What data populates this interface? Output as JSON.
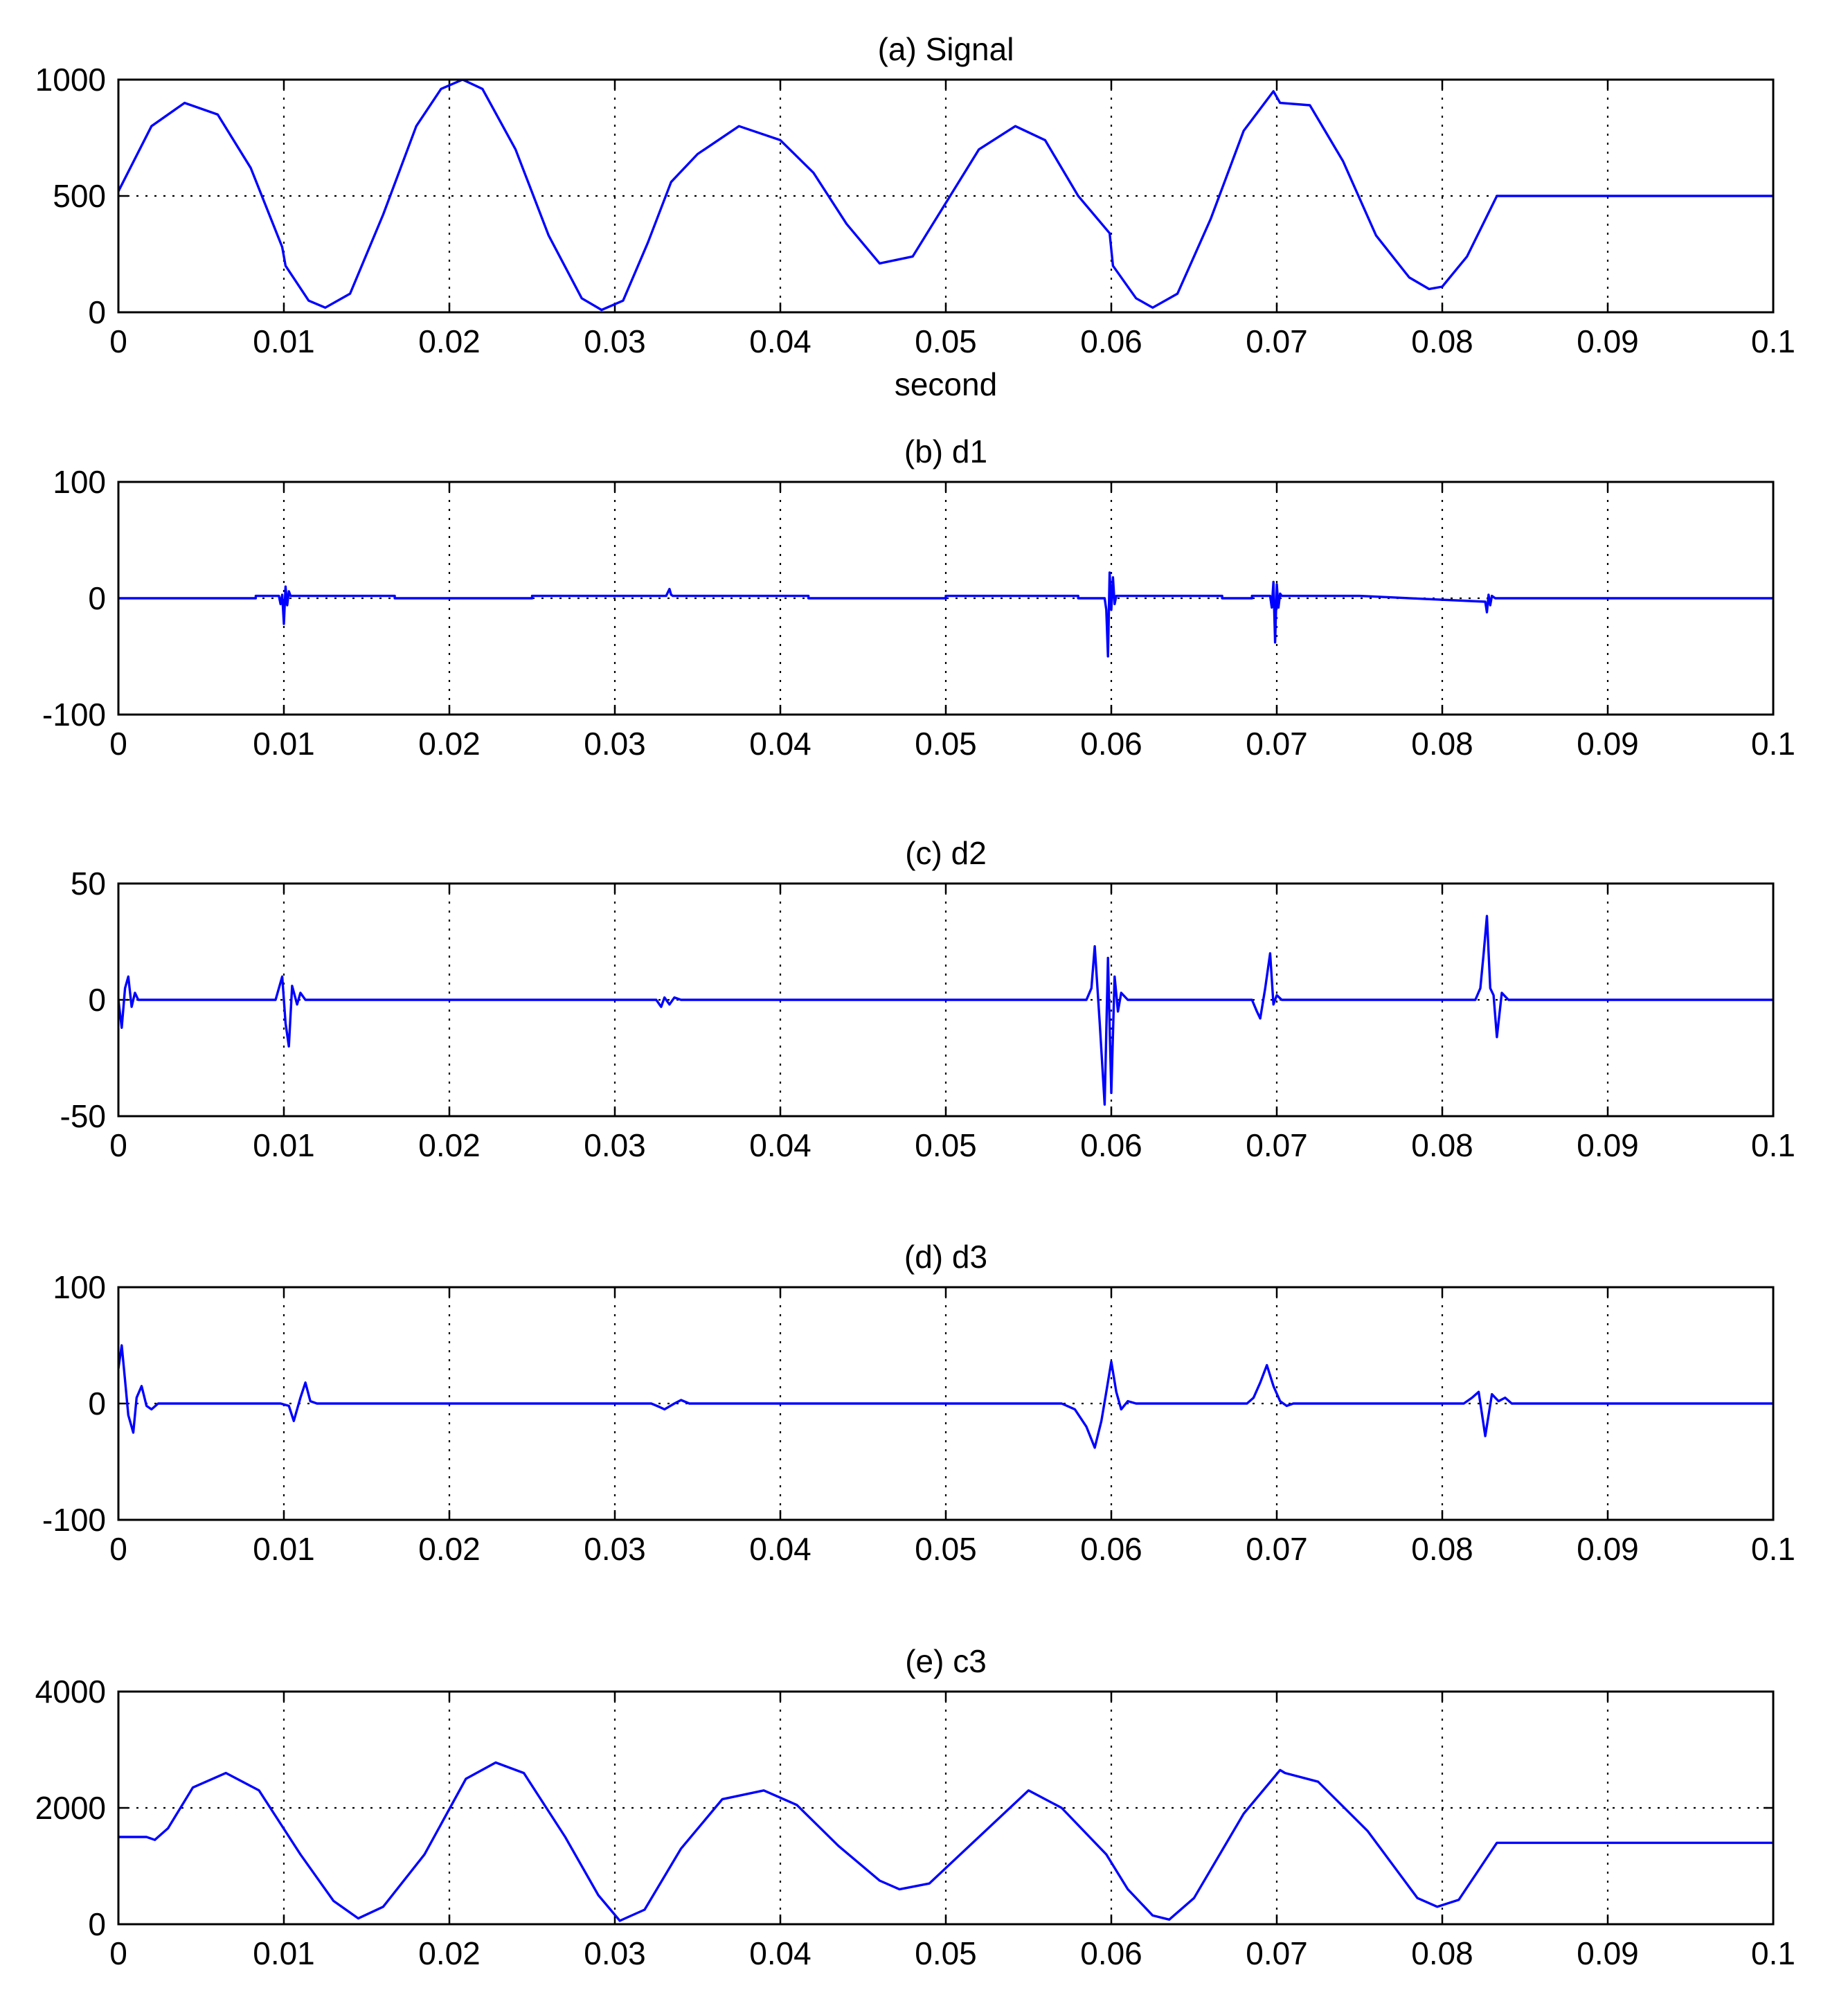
{
  "figure": {
    "colors": {
      "series": "#0000ff",
      "axes": "#000000",
      "background": "#ffffff"
    }
  },
  "chart_data": [
    {
      "type": "line",
      "title": "(a) Signal",
      "xlabel": "second",
      "ylabel": "",
      "xlim": [
        0,
        0.1
      ],
      "ylim": [
        0,
        1000
      ],
      "xticks": [
        0,
        0.01,
        0.02,
        0.03,
        0.04,
        0.05,
        0.06,
        0.07,
        0.08,
        0.09,
        0.1
      ],
      "xtick_labels": [
        "0",
        "0.01",
        "0.02",
        "0.03",
        "0.04",
        "0.05",
        "0.06",
        "0.07",
        "0.08",
        "0.09",
        "0.1"
      ],
      "yticks": [
        0,
        500,
        1000
      ],
      "ytick_labels": [
        "0",
        "500",
        "1000"
      ],
      "grid": true,
      "series": [
        {
          "x": [
            0,
            0.002,
            0.004,
            0.006,
            0.008,
            0.0099,
            0.0101,
            0.0115,
            0.0125,
            0.014,
            0.016,
            0.018,
            0.0195,
            0.0208,
            0.022,
            0.024,
            0.026,
            0.028,
            0.0292,
            0.0305,
            0.032,
            0.0334,
            0.035,
            0.0375,
            0.04,
            0.042,
            0.044,
            0.046,
            0.048,
            0.05,
            0.052,
            0.0542,
            0.056,
            0.058,
            0.0599,
            0.0601,
            0.0615,
            0.0625,
            0.064,
            0.066,
            0.068,
            0.0698,
            0.0702,
            0.072,
            0.074,
            0.076,
            0.078,
            0.0792,
            0.08,
            0.0815,
            0.0833,
            0.0834,
            0.09,
            0.1
          ],
          "y": [
            520,
            800,
            900,
            850,
            620,
            280,
            200,
            50,
            20,
            80,
            420,
            800,
            960,
            1000,
            960,
            700,
            330,
            60,
            10,
            50,
            300,
            560,
            680,
            800,
            740,
            600,
            380,
            210,
            240,
            470,
            700,
            800,
            740,
            500,
            340,
            200,
            60,
            20,
            80,
            400,
            780,
            950,
            900,
            890,
            650,
            330,
            150,
            100,
            110,
            240,
            500,
            500,
            500,
            500
          ]
        }
      ]
    },
    {
      "type": "line",
      "title": "(b) d1",
      "xlabel": "",
      "ylabel": "",
      "xlim": [
        0,
        0.1
      ],
      "ylim": [
        -100,
        100
      ],
      "xticks": [
        0,
        0.01,
        0.02,
        0.03,
        0.04,
        0.05,
        0.06,
        0.07,
        0.08,
        0.09,
        0.1
      ],
      "xtick_labels": [
        "0",
        "0.01",
        "0.02",
        "0.03",
        "0.04",
        "0.05",
        "0.06",
        "0.07",
        "0.08",
        "0.09",
        "0.1"
      ],
      "yticks": [
        -100,
        0,
        100
      ],
      "ytick_labels": [
        "-100",
        "0",
        "100"
      ],
      "grid": true,
      "series": [
        {
          "x": [
            0,
            0.0083,
            0.0083,
            0.0097,
            0.0098,
            0.0099,
            0.01,
            0.0101,
            0.0102,
            0.0103,
            0.0104,
            0.0105,
            0.0167,
            0.0167,
            0.025,
            0.025,
            0.0331,
            0.0332,
            0.0333,
            0.0334,
            0.0335,
            0.0417,
            0.0417,
            0.05,
            0.05,
            0.058,
            0.058,
            0.0596,
            0.0597,
            0.0598,
            0.0599,
            0.06,
            0.0601,
            0.0602,
            0.0603,
            0.0604,
            0.0606,
            0.0667,
            0.0667,
            0.0685,
            0.0685,
            0.0696,
            0.0697,
            0.0698,
            0.0699,
            0.07,
            0.0701,
            0.0702,
            0.0703,
            0.0705,
            0.075,
            0.075,
            0.0826,
            0.0827,
            0.0828,
            0.0829,
            0.083,
            0.0832,
            0.1
          ],
          "y": [
            0,
            0,
            2,
            2,
            -5,
            3,
            -22,
            10,
            -6,
            6,
            2,
            2,
            2,
            0,
            0,
            2,
            2,
            5,
            8,
            3,
            2,
            2,
            0,
            0,
            2,
            2,
            0,
            0,
            -10,
            -50,
            22,
            -10,
            18,
            -5,
            2,
            2,
            2,
            2,
            0,
            0,
            2,
            2,
            -8,
            14,
            -38,
            12,
            -8,
            4,
            2,
            2,
            2,
            2,
            -3,
            -12,
            3,
            -6,
            2,
            0,
            0
          ]
        }
      ]
    },
    {
      "type": "line",
      "title": "(c) d2",
      "xlabel": "",
      "ylabel": "",
      "xlim": [
        0,
        0.1
      ],
      "ylim": [
        -50,
        50
      ],
      "xticks": [
        0,
        0.01,
        0.02,
        0.03,
        0.04,
        0.05,
        0.06,
        0.07,
        0.08,
        0.09,
        0.1
      ],
      "xtick_labels": [
        "0",
        "0.01",
        "0.02",
        "0.03",
        "0.04",
        "0.05",
        "0.06",
        "0.07",
        "0.08",
        "0.09",
        "0.1"
      ],
      "yticks": [
        -50,
        0,
        50
      ],
      "ytick_labels": [
        "-50",
        "0",
        "50"
      ],
      "grid": true,
      "series": [
        {
          "x": [
            0,
            0.0002,
            0.0004,
            0.0006,
            0.0008,
            0.001,
            0.0012,
            0.0015,
            0.0095,
            0.0097,
            0.0099,
            0.0101,
            0.0103,
            0.0105,
            0.0108,
            0.011,
            0.0113,
            0.0325,
            0.0328,
            0.033,
            0.0333,
            0.0336,
            0.034,
            0.0585,
            0.0588,
            0.059,
            0.0593,
            0.0596,
            0.0598,
            0.06,
            0.0602,
            0.0604,
            0.0606,
            0.061,
            0.0685,
            0.0688,
            0.069,
            0.0693,
            0.0696,
            0.0698,
            0.07,
            0.0703,
            0.082,
            0.0823,
            0.0825,
            0.0827,
            0.0829,
            0.0831,
            0.0833,
            0.0836,
            0.084,
            0.1
          ],
          "y": [
            0,
            -12,
            5,
            10,
            -3,
            3,
            0,
            0,
            0,
            5,
            10,
            -10,
            -20,
            6,
            -2,
            3,
            0,
            0,
            -3,
            1,
            -2,
            1,
            0,
            0,
            5,
            23,
            -10,
            -45,
            18,
            -40,
            10,
            -5,
            3,
            0,
            0,
            -5,
            -8,
            5,
            20,
            -2,
            2,
            0,
            0,
            5,
            20,
            36,
            5,
            2,
            -16,
            3,
            0,
            0
          ]
        }
      ]
    },
    {
      "type": "line",
      "title": "(d) d3",
      "xlabel": "",
      "ylabel": "",
      "xlim": [
        0,
        0.1
      ],
      "ylim": [
        -100,
        100
      ],
      "xticks": [
        0,
        0.01,
        0.02,
        0.03,
        0.04,
        0.05,
        0.06,
        0.07,
        0.08,
        0.09,
        0.1
      ],
      "xtick_labels": [
        "0",
        "0.01",
        "0.02",
        "0.03",
        "0.04",
        "0.05",
        "0.06",
        "0.07",
        "0.08",
        "0.09",
        "0.1"
      ],
      "yticks": [
        -100,
        0,
        100
      ],
      "ytick_labels": [
        "-100",
        "0",
        "100"
      ],
      "grid": true,
      "series": [
        {
          "x": [
            0,
            0.0002,
            0.0004,
            0.0006,
            0.0009,
            0.0011,
            0.0014,
            0.0017,
            0.002,
            0.0024,
            0.0028,
            0.0098,
            0.0103,
            0.0106,
            0.011,
            0.0113,
            0.0116,
            0.012,
            0.0322,
            0.0327,
            0.033,
            0.0336,
            0.034,
            0.0345,
            0.057,
            0.0578,
            0.0585,
            0.059,
            0.0594,
            0.0597,
            0.06,
            0.0603,
            0.0606,
            0.061,
            0.0615,
            0.0682,
            0.0686,
            0.069,
            0.0694,
            0.0698,
            0.0702,
            0.0706,
            0.071,
            0.0813,
            0.0818,
            0.0822,
            0.0826,
            0.083,
            0.0834,
            0.0838,
            0.0842,
            0.1
          ],
          "y": [
            30,
            50,
            20,
            -10,
            -25,
            5,
            15,
            -2,
            -5,
            0,
            0,
            0,
            -2,
            -15,
            5,
            18,
            2,
            0,
            0,
            -3,
            -5,
            0,
            3,
            0,
            0,
            -5,
            -20,
            -38,
            -15,
            10,
            36,
            10,
            -5,
            2,
            0,
            0,
            5,
            18,
            33,
            15,
            2,
            -2,
            0,
            0,
            5,
            10,
            -28,
            8,
            2,
            5,
            0,
            0
          ]
        }
      ]
    },
    {
      "type": "line",
      "title": "(e) c3",
      "xlabel": "",
      "ylabel": "",
      "xlim": [
        0,
        0.1
      ],
      "ylim": [
        0,
        4000
      ],
      "xticks": [
        0,
        0.01,
        0.02,
        0.03,
        0.04,
        0.05,
        0.06,
        0.07,
        0.08,
        0.09,
        0.1
      ],
      "xtick_labels": [
        "0",
        "0.01",
        "0.02",
        "0.03",
        "0.04",
        "0.05",
        "0.06",
        "0.07",
        "0.08",
        "0.09",
        "0.1"
      ],
      "yticks": [
        0,
        2000,
        4000
      ],
      "ytick_labels": [
        "0",
        "2000",
        "4000"
      ],
      "grid": true,
      "series": [
        {
          "x": [
            0,
            0.0017,
            0.0022,
            0.003,
            0.0045,
            0.0065,
            0.0085,
            0.011,
            0.013,
            0.0145,
            0.016,
            0.0185,
            0.021,
            0.0228,
            0.0245,
            0.027,
            0.029,
            0.0303,
            0.0318,
            0.034,
            0.0365,
            0.039,
            0.041,
            0.0435,
            0.046,
            0.0472,
            0.049,
            0.052,
            0.055,
            0.057,
            0.0597,
            0.061,
            0.0625,
            0.0635,
            0.065,
            0.068,
            0.0702,
            0.0705,
            0.0725,
            0.0755,
            0.0785,
            0.0797,
            0.081,
            0.0833,
            0.0834,
            0.09,
            0.1
          ],
          "y": [
            1500,
            1500,
            1450,
            1650,
            2350,
            2600,
            2300,
            1200,
            400,
            100,
            300,
            1200,
            2500,
            2780,
            2600,
            1500,
            500,
            60,
            250,
            1300,
            2150,
            2300,
            2050,
            1350,
            750,
            600,
            700,
            1500,
            2300,
            2000,
            1200,
            600,
            150,
            80,
            450,
            1900,
            2650,
            2600,
            2450,
            1600,
            450,
            300,
            420,
            1400,
            1400,
            1400,
            1400
          ]
        }
      ]
    }
  ]
}
